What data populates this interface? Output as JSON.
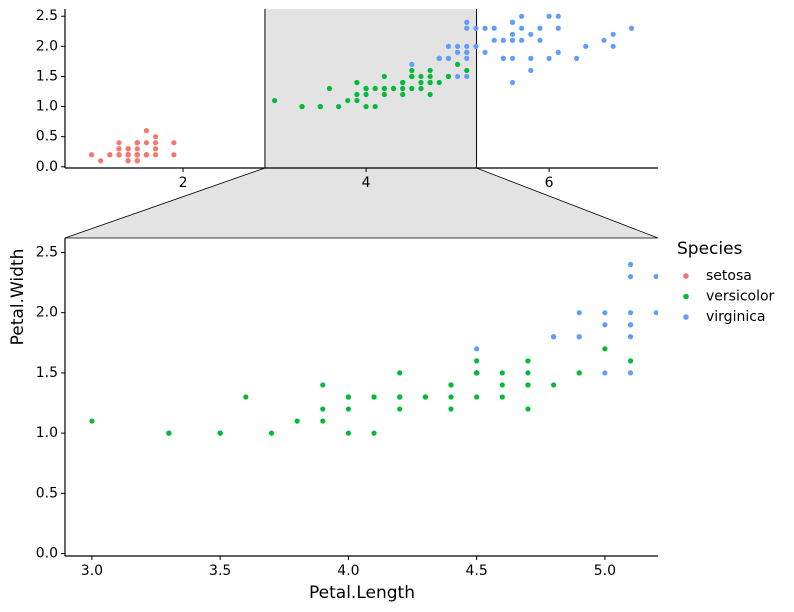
{
  "chart_data": {
    "type": "scatter",
    "x_label": "Petal.Length",
    "y_label": "Petal.Width",
    "legend_title": "Species",
    "overview": {
      "xlim": [
        0.71,
        7.19
      ],
      "ylim": [
        -0.02,
        2.62
      ],
      "xticks": [
        2,
        4,
        6
      ],
      "yticks": [
        {
          "value": 0,
          "label": "0.0"
        },
        0.5,
        {
          "value": 1,
          "label": "1.0"
        },
        1.5,
        {
          "value": 2,
          "label": "2.0"
        },
        2.5
      ]
    },
    "zoom": {
      "xlim": [
        2.895,
        5.207
      ],
      "ylim": [
        -0.02,
        2.62
      ],
      "xticks": [
        {
          "value": 3,
          "label": "3.0"
        },
        3.5,
        {
          "value": 4,
          "label": "4.0"
        },
        4.5,
        {
          "value": 5,
          "label": "5.0"
        }
      ],
      "yticks": [
        {
          "value": 0,
          "label": "0.0"
        },
        0.5,
        {
          "value": 1,
          "label": "1.0"
        },
        1.5,
        {
          "value": 2,
          "label": "2.0"
        },
        2.5
      ]
    },
    "series": [
      {
        "name": "setosa",
        "color": "#F8766D",
        "x": [
          1.4,
          1.4,
          1.3,
          1.5,
          1.4,
          1.7,
          1.4,
          1.5,
          1.4,
          1.5,
          1.5,
          1.6,
          1.4,
          1.1,
          1.2,
          1.5,
          1.3,
          1.4,
          1.7,
          1.5,
          1.7,
          1.5,
          1.0,
          1.7,
          1.9,
          1.6,
          1.6,
          1.5,
          1.4,
          1.6,
          1.6,
          1.5,
          1.5,
          1.4,
          1.5,
          1.2,
          1.3,
          1.4,
          1.3,
          1.5,
          1.3,
          1.3,
          1.3,
          1.6,
          1.9,
          1.4,
          1.6,
          1.4,
          1.5,
          1.4
        ],
        "y": [
          0.2,
          0.2,
          0.2,
          0.2,
          0.2,
          0.4,
          0.3,
          0.2,
          0.2,
          0.1,
          0.2,
          0.2,
          0.1,
          0.1,
          0.2,
          0.4,
          0.4,
          0.3,
          0.3,
          0.3,
          0.2,
          0.4,
          0.2,
          0.5,
          0.2,
          0.2,
          0.4,
          0.2,
          0.2,
          0.2,
          0.2,
          0.4,
          0.1,
          0.2,
          0.2,
          0.2,
          0.2,
          0.1,
          0.2,
          0.2,
          0.3,
          0.3,
          0.2,
          0.6,
          0.4,
          0.3,
          0.2,
          0.2,
          0.2,
          0.2
        ]
      },
      {
        "name": "versicolor",
        "color": "#00BA38",
        "x": [
          4.7,
          4.5,
          4.9,
          4.0,
          4.6,
          4.5,
          4.7,
          3.3,
          4.6,
          3.9,
          3.5,
          4.2,
          4.0,
          4.7,
          3.6,
          4.4,
          4.5,
          4.1,
          4.5,
          3.9,
          4.8,
          4.0,
          4.9,
          4.7,
          4.3,
          4.4,
          4.8,
          5.0,
          4.5,
          3.5,
          3.8,
          3.7,
          3.9,
          5.1,
          4.5,
          4.5,
          4.7,
          4.4,
          4.1,
          4.0,
          4.4,
          4.6,
          4.0,
          3.3,
          4.2,
          4.2,
          4.2,
          4.3,
          3.0,
          4.1
        ],
        "y": [
          1.4,
          1.5,
          1.5,
          1.3,
          1.5,
          1.3,
          1.6,
          1.0,
          1.3,
          1.4,
          1.0,
          1.5,
          1.0,
          1.4,
          1.3,
          1.4,
          1.5,
          1.0,
          1.5,
          1.1,
          1.8,
          1.3,
          1.5,
          1.2,
          1.3,
          1.4,
          1.4,
          1.7,
          1.5,
          1.0,
          1.1,
          1.0,
          1.2,
          1.6,
          1.5,
          1.6,
          1.5,
          1.3,
          1.3,
          1.3,
          1.2,
          1.4,
          1.2,
          1.0,
          1.3,
          1.2,
          1.3,
          1.3,
          1.1,
          1.3
        ]
      },
      {
        "name": "virginica",
        "color": "#619CFF",
        "x": [
          6.0,
          5.1,
          5.9,
          5.6,
          5.8,
          6.6,
          4.5,
          6.3,
          5.8,
          6.1,
          5.1,
          5.3,
          5.5,
          5.0,
          5.1,
          5.3,
          5.5,
          6.7,
          6.9,
          5.0,
          5.7,
          4.9,
          6.7,
          4.9,
          5.7,
          6.0,
          4.8,
          4.9,
          5.6,
          5.8,
          6.1,
          6.4,
          5.6,
          5.1,
          5.6,
          6.1,
          5.6,
          5.5,
          4.8,
          5.4,
          5.6,
          5.1,
          5.1,
          5.9,
          5.7,
          5.2,
          5.0,
          5.2,
          5.4,
          5.1
        ],
        "y": [
          2.5,
          1.9,
          2.1,
          1.8,
          2.2,
          2.1,
          1.7,
          1.8,
          1.8,
          2.5,
          2.0,
          1.9,
          2.1,
          2.0,
          2.4,
          2.3,
          1.8,
          2.2,
          2.3,
          1.5,
          2.3,
          2.0,
          2.0,
          1.8,
          2.1,
          1.8,
          1.8,
          1.8,
          2.1,
          1.6,
          1.9,
          2.0,
          2.2,
          1.5,
          1.4,
          2.3,
          2.4,
          1.8,
          1.8,
          2.1,
          2.4,
          2.3,
          1.9,
          2.3,
          2.5,
          2.3,
          1.9,
          2.0,
          2.3,
          1.8
        ]
      }
    ]
  }
}
